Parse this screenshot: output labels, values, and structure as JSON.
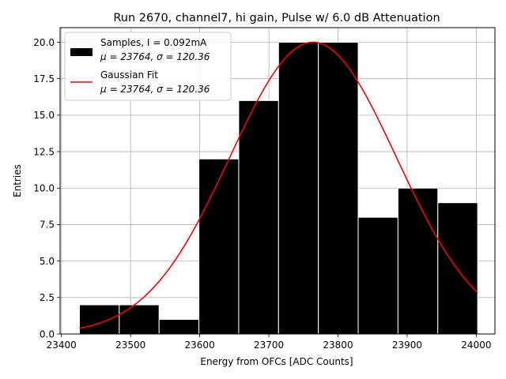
{
  "chart_data": {
    "type": "bar",
    "title": "Run 2670, channel7, hi gain, Pulse w/ 6.0 dB Attenuation",
    "xlabel": "Energy from OFCs [ADC Counts]",
    "ylabel": "Entries",
    "xlim": [
      23398,
      24027
    ],
    "ylim": [
      0,
      21
    ],
    "xticks": [
      23400,
      23500,
      23600,
      23700,
      23800,
      23900,
      24000
    ],
    "yticks": [
      "0.0",
      "2.5",
      "5.0",
      "7.5",
      "10.0",
      "12.5",
      "15.0",
      "17.5",
      "20.0"
    ],
    "grid": true,
    "legend_position": "upper-left",
    "legend": [
      {
        "label_line1": "Samples, I = 0.092mA",
        "label_line2": "μ = 23764, σ = 120.36",
        "color": "#000000",
        "kind": "bar"
      },
      {
        "label_line1": "Gaussian Fit",
        "label_line2": "μ = 23764, σ = 120.36",
        "color": "#ff0000",
        "kind": "line"
      }
    ],
    "bins": {
      "edges": [
        23426,
        23483.6,
        23541.2,
        23598.8,
        23656.4,
        23714,
        23771.6,
        23829.2,
        23886.8,
        23944.4,
        24002
      ],
      "counts": [
        2,
        2,
        1,
        12,
        16,
        20,
        20,
        8,
        10,
        9
      ],
      "color": "#000000",
      "edgecolor": "#ffffff"
    },
    "fit": {
      "type": "gaussian",
      "mu": 23764,
      "sigma": 120.36,
      "amplitude": 20,
      "x_range": [
        23426,
        24002
      ],
      "color": "#ff0000"
    }
  }
}
